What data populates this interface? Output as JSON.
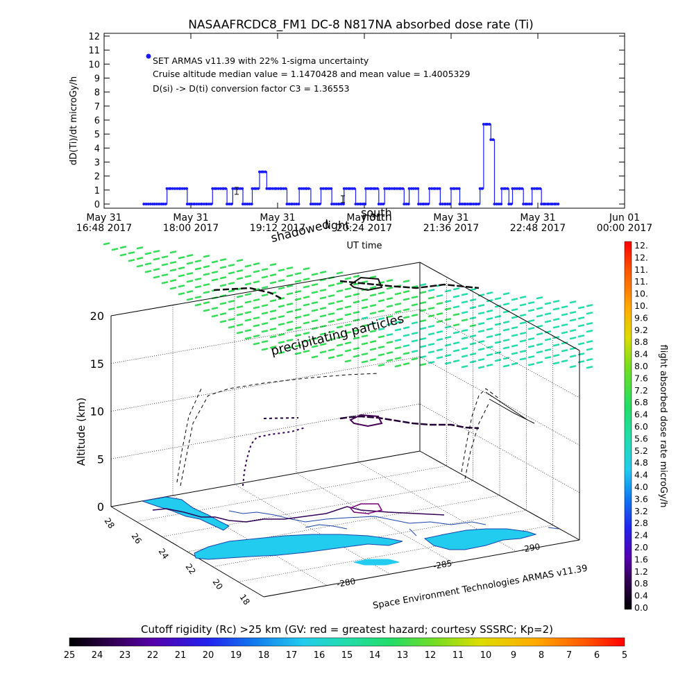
{
  "top_chart": {
    "title": "NASAAFRCDC8_FM1 DC-8   N817NA absorbed dose rate (Ti)",
    "ylabel": "dD(Ti)/dt microGy/h",
    "xlabel": "UT time",
    "annotations": [
      "SET ARMAS v11.39 with 22% 1-sigma uncertainty",
      "Cruise altitude median value = 1.1470428 and mean value = 1.4005329",
      "D(si) -> D(ti) conversion factor C3 = 1.36553"
    ]
  },
  "overlay_labels": {
    "shadowed": "shadowed",
    "north": "north",
    "south": "south",
    "light": "light"
  },
  "three_d": {
    "zlabel": "Altitude (km)",
    "zticks": [
      "0",
      "5",
      "10",
      "15",
      "20"
    ],
    "lat_ticks": [
      "28",
      "26",
      "24",
      "22",
      "20",
      "18"
    ],
    "lon_ticks": [
      "-280",
      "-285",
      "-290"
    ],
    "precip_label": "precipitating particles",
    "credit": "Space Environment Technologies ARMAS v11.39"
  },
  "dose_colorbar": {
    "label": "flight absorbed dose rate microGy/h",
    "ticks": [
      "0.0",
      "0.4",
      "0.8",
      "1.2",
      "1.6",
      "2.0",
      "2.4",
      "2.8",
      "3.2",
      "3.6",
      "4.0",
      "4.4",
      "4.8",
      "5.2",
      "5.6",
      "6.0",
      "6.4",
      "6.8",
      "7.2",
      "7.6",
      "8.0",
      "8.4",
      "8.8",
      "9.2",
      "9.6",
      "10.",
      "10.",
      "11.",
      "11.",
      "12.",
      "12."
    ]
  },
  "rigidity_colorbar": {
    "label": "Cutoff rigidity (Rc) >25 km (GV: red = greatest hazard; courtesy SSSRC; Kp=2)",
    "ticks": [
      "25",
      "24",
      "23",
      "22",
      "21",
      "20",
      "19",
      "18",
      "17",
      "16",
      "15",
      "14",
      "13",
      "12",
      "11",
      "10",
      "9",
      "8",
      "7",
      "6",
      "5"
    ]
  },
  "colors": {
    "series": "#1a1aff",
    "precip": "#22dd88",
    "land": "#22ccee",
    "flight_track": "#330055"
  },
  "chart_data": [
    {
      "type": "line",
      "title": "NASAAFRCDC8_FM1 DC-8   N817NA absorbed dose rate (Ti)",
      "xlabel": "UT time",
      "ylabel": "dD(Ti)/dt microGy/h",
      "ylim": [
        0,
        12
      ],
      "xlim_hours": [
        16.8,
        24.0
      ],
      "x_ticks": [
        {
          "h": 16.8,
          "day": "May 31",
          "time": "16:48 2017"
        },
        {
          "h": 18.0,
          "day": "May 31",
          "time": "18:00 2017"
        },
        {
          "h": 19.2,
          "day": "May 31",
          "time": "19:12 2017"
        },
        {
          "h": 20.4,
          "day": "May 31",
          "time": "20:24 2017"
        },
        {
          "h": 21.6,
          "day": "May 31",
          "time": "21:36 2017"
        },
        {
          "h": 22.8,
          "day": "May 31",
          "time": "22:48 2017"
        },
        {
          "h": 24.0,
          "day": "Jun 01",
          "time": "00:00 2017"
        }
      ],
      "y_ticks": [
        0,
        1,
        2,
        3,
        4,
        5,
        6,
        7,
        8,
        9,
        10,
        11,
        12
      ],
      "legend_placement": "top-left",
      "series": [
        {
          "x": [
            17.35,
            17.5,
            17.62,
            17.67,
            17.72,
            17.85,
            17.95,
            18.05,
            18.15,
            18.22,
            18.3,
            18.35,
            18.45,
            18.5,
            18.58,
            18.65,
            18.72,
            18.78,
            18.85,
            18.9,
            18.95,
            19.0,
            19.05,
            19.1,
            19.18,
            19.25,
            19.33,
            19.4,
            19.5,
            19.6,
            19.66,
            19.72,
            19.8,
            19.88,
            19.95,
            20.05,
            20.12,
            20.2,
            20.28,
            20.35,
            20.42,
            20.5,
            20.55,
            20.6,
            20.68,
            20.75,
            20.82,
            20.9,
            20.95,
            21.02,
            21.08,
            21.15,
            21.22,
            21.3,
            21.38,
            21.45,
            21.52,
            21.6,
            21.65,
            21.72,
            21.8,
            21.88,
            21.95,
            22.0,
            22.05,
            22.1,
            22.15,
            22.2,
            22.3,
            22.35,
            22.4,
            22.45,
            22.55,
            22.6,
            22.65,
            22.72,
            22.8,
            22.85,
            22.9,
            22.95,
            23.0,
            23.05
          ],
          "y": [
            0,
            0,
            0,
            1.1,
            1.1,
            1.1,
            0,
            0,
            0,
            0,
            1.1,
            1.1,
            1.1,
            0,
            1.1,
            1.1,
            0,
            0,
            1.1,
            1.1,
            2.3,
            2.3,
            1.1,
            1.1,
            1.1,
            1.1,
            0,
            0,
            1.1,
            1.1,
            0,
            0,
            1.1,
            1.1,
            0,
            0,
            1.1,
            1.1,
            0,
            0,
            1.1,
            1.1,
            1.1,
            0,
            1.1,
            1.1,
            1.1,
            1.1,
            0,
            1.1,
            1.1,
            0,
            0,
            1.1,
            1.1,
            0,
            0,
            1.1,
            1.1,
            0,
            0,
            0,
            0,
            1.1,
            5.7,
            5.7,
            4.6,
            0,
            1.1,
            1.1,
            0,
            1.1,
            1.1,
            0,
            0,
            1.1,
            1.1,
            0,
            0,
            0,
            0,
            0
          ]
        }
      ]
    },
    {
      "type": "scatter",
      "xlabel": "",
      "ylabel": "",
      "zlabel": "Altitude (km)",
      "zlim": [
        0,
        20
      ],
      "lat_ticks": [
        28,
        26,
        24,
        22,
        20,
        18
      ],
      "lon_ticks": [
        -280,
        -285,
        -290
      ]
    }
  ]
}
